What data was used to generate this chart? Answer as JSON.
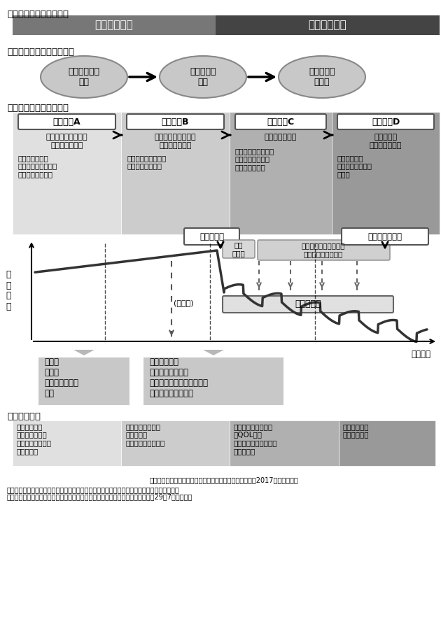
{
  "title_section1": "【心不全とそのリスク】",
  "title_section2": "【心不全の進展イベント】",
  "title_section3": "【心不全ステージ分類】",
  "title_section4": "【治療目標】",
  "risk_bar_left_text": "心不全リスク",
  "risk_bar_right_text": "症候性心不全",
  "risk_bar_left_color": "#777777",
  "risk_bar_right_color": "#444444",
  "event_nodes": [
    "器質的心疾患\n発症",
    "心不全症候\n出現",
    "心不全治療\n抵抗性"
  ],
  "event_node_color": "#bbbbbb",
  "stage_labels": [
    "ステージA",
    "ステージB",
    "ステージC",
    "ステージD"
  ],
  "stage_colors": [
    "#e0e0e0",
    "#cccccc",
    "#b0b0b0",
    "#999999"
  ],
  "stage_subtitles": [
    "器質的心疾患のない\nリスクステージ",
    "器質的心疾患のある\nリスクステージ",
    "心不全ステージ",
    "治療抵抗性\n心不全ステージ"
  ],
  "stage_bullets": [
    "・危険因子あり\n・器質的心疾患なし\n・心不全症候なし",
    "・器質的心疾患あり\n・心不全症候なし",
    "・器質的心疾患あり\n・心不全症候あり\n（既往も含む）",
    "・治療抵抗性\n（難治性・末期）\n心不全"
  ],
  "graph_ylabel": "身\n体\n機\n能",
  "graph_xlabel": "時間経過",
  "label_shinpai": "心不全発症",
  "label_nanjika": "心不全の難治化",
  "label_kyusei": "急性\n心不全",
  "label_mansei": "慢性心不全",
  "label_mansei_kyusei": "慢性心不全の急性増悪\n（急性心不全）反復",
  "label_totsuzenshi": "(突然死)",
  "box1_text": "高血圧\n糖尿病\n動脈硬化性疾患\nなど",
  "box2_text": "虚血性心疾患\n左室リモデリング\n（左室肥大・駆出率低下）\n無症候性弁膜症など",
  "treatment_col1": "・危険因子の\n　コントロール\n・器質的心疾患の\n　発症予防",
  "treatment_col2": "・器質的心疾患の\n　進展予防\n・心不全の発症予防",
  "treatment_col3": "・症状コントロール\n・QOL改善\n・入院予防・死亡回避\n・緩和ケア",
  "treatment_col4": "・再入院予防\n・終末期ケア",
  "footnote1": "「日本循環器学会　急性・慢性心不全診療ガイドライン（2017年改訂版）」",
  "footnote2": "「厚生労働省　脳卒中、心臓病その他の循環器病に係る診療提供体制の在り方に関する検討会",
  "footnote3": "　脳卒中、心臓病その他の循環器病に係る診療提供体制の在り方について（平成29年7月）」より",
  "bg_color": "#ffffff"
}
